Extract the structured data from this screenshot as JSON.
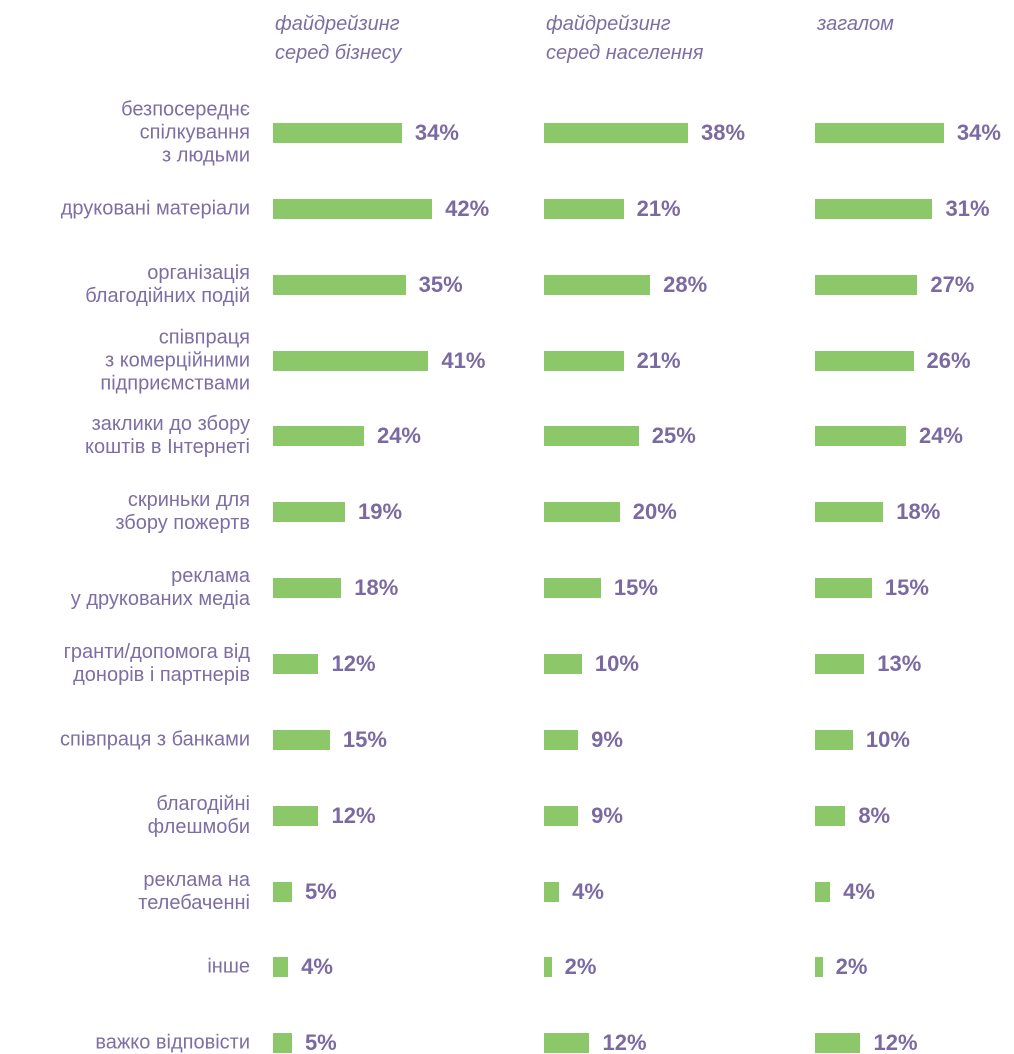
{
  "chart_data": {
    "type": "bar",
    "orientation": "horizontal",
    "color": "#8cc869",
    "categories": [
      "безпосереднє\nспілкування\nз людьми",
      "друковані матеріали",
      "організація\nблагодійних подій",
      "співпраця\nз комерційними\nпідприємствами",
      "заклики до збору\nкоштів в Інтернеті",
      "скриньки для\nзбору пожертв",
      "реклама\nу друкованих медіа",
      "гранти/допомога від\nдонорів і партнерів",
      "співпраця з банками",
      "благодійні\nфлешмоби",
      "реклама на\nтелебаченні",
      "інше",
      "важко відповісти"
    ],
    "series": [
      {
        "name": "файдрейзинг\nсеред бізнесу",
        "color": "#8cc869",
        "values": [
          34,
          42,
          35,
          41,
          24,
          19,
          18,
          12,
          15,
          12,
          5,
          4,
          5
        ],
        "value_labels": [
          "34%",
          "42%",
          "35%",
          "41%",
          "24%",
          "19%",
          "18%",
          "12%",
          "15%",
          "12%",
          "5%",
          "4%",
          "5%"
        ]
      },
      {
        "name": "файдрейзинг\nсеред населення",
        "color": "#8cc869",
        "values": [
          38,
          21,
          28,
          21,
          25,
          20,
          15,
          10,
          9,
          9,
          4,
          2,
          12
        ],
        "value_labels": [
          "38%",
          "21%",
          "28%",
          "21%",
          "25%",
          "20%",
          "15%",
          "10%",
          "9%",
          "9%",
          "4%",
          "2%",
          "12%"
        ]
      },
      {
        "name": "загалом",
        "color": "#8cc869",
        "values": [
          34,
          31,
          27,
          26,
          24,
          18,
          15,
          13,
          10,
          8,
          4,
          2,
          12
        ],
        "value_labels": [
          "34%",
          "31%",
          "27%",
          "26%",
          "24%",
          "18%",
          "15%",
          "13%",
          "10%",
          "8%",
          "4%",
          "2%",
          "12%"
        ]
      }
    ]
  }
}
